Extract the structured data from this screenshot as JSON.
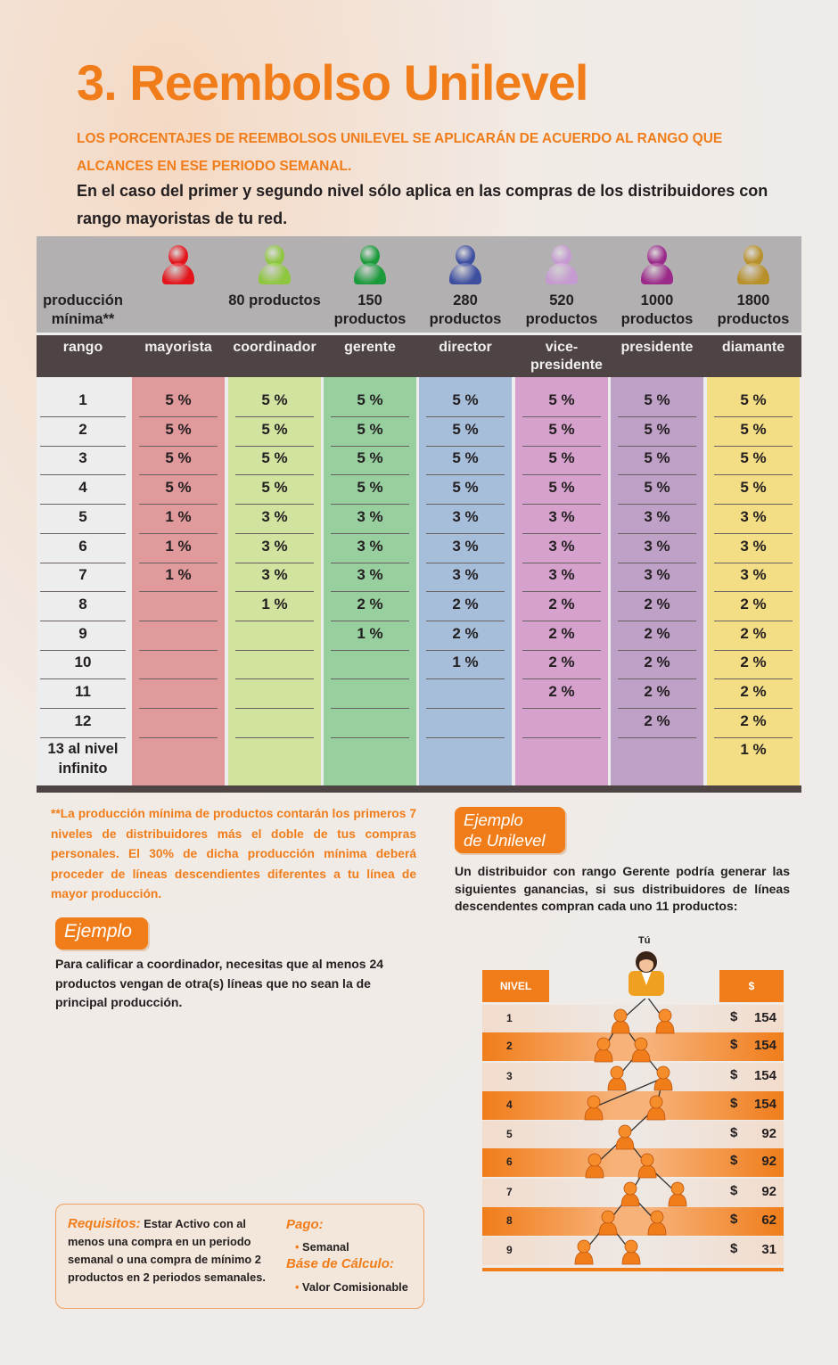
{
  "title": "3. Reembolso Unilevel",
  "intro_orange": "LOS PORCENTAJES DE REEMBOLSOS UNILEVEL SE APLICARÁN DE ACUERDO AL RANGO QUE ALCANCES EN ESE PERIODO SEMANAL.",
  "intro_dark": "En el caso del primer y segundo nivel sólo aplica en las compras de los distribuidores con rango mayoristas de tu red.",
  "table": {
    "header_label": "producción mínima**",
    "rank_label": "rango",
    "ranks": [
      {
        "name": "mayorista",
        "min": "",
        "icon": "person-red-icon",
        "icon_color": "#e3141b",
        "col_color": "#e09a9c"
      },
      {
        "name": "coordinador",
        "min": "80 productos",
        "icon": "person-lightgreen-icon",
        "icon_color": "#8ec63f",
        "col_color": "#d2e3a0"
      },
      {
        "name": "gerente",
        "min": "150 productos",
        "icon": "person-green-icon",
        "icon_color": "#1a9a3a",
        "col_color": "#97cf9f"
      },
      {
        "name": "director",
        "min": "280 productos",
        "icon": "person-blue-icon",
        "icon_color": "#3f4fa0",
        "col_color": "#a7bedb"
      },
      {
        "name": "vice-presidente",
        "min": "520 productos",
        "icon": "person-lilac-icon",
        "icon_color": "#c59ad0",
        "col_color": "#d6a2cd"
      },
      {
        "name": "presidente",
        "min": "1000 productos",
        "icon": "person-purple-icon",
        "icon_color": "#9b2a8a",
        "col_color": "#bfa1c8"
      },
      {
        "name": "diamante",
        "min": "1800 productos",
        "icon": "person-gold-icon",
        "icon_color": "#b8902a",
        "col_color": "#f4de85"
      }
    ],
    "levels": [
      "1",
      "2",
      "3",
      "4",
      "5",
      "6",
      "7",
      "8",
      "9",
      "10",
      "11",
      "12",
      "13 al nivel infinito"
    ],
    "values": [
      [
        "5 %",
        "5 %",
        "5 %",
        "5 %",
        "5 %",
        "5 %",
        "5 %"
      ],
      [
        "5 %",
        "5 %",
        "5 %",
        "5 %",
        "5 %",
        "5 %",
        "5 %"
      ],
      [
        "5 %",
        "5 %",
        "5 %",
        "5 %",
        "5 %",
        "5 %",
        "5 %"
      ],
      [
        "5 %",
        "5 %",
        "5 %",
        "5 %",
        "5 %",
        "5 %",
        "5 %"
      ],
      [
        "1 %",
        "3 %",
        "3 %",
        "3 %",
        "3 %",
        "3 %",
        "3 %"
      ],
      [
        "1 %",
        "3 %",
        "3 %",
        "3 %",
        "3 %",
        "3 %",
        "3 %"
      ],
      [
        "1 %",
        "3 %",
        "3 %",
        "3 %",
        "3 %",
        "3 %",
        "3 %"
      ],
      [
        "",
        "1 %",
        "2 %",
        "2 %",
        "2 %",
        "2 %",
        "2 %"
      ],
      [
        "",
        "",
        "1 %",
        "2 %",
        "2 %",
        "2 %",
        "2 %"
      ],
      [
        "",
        "",
        "",
        "1 %",
        "2 %",
        "2 %",
        "2 %"
      ],
      [
        "",
        "",
        "",
        "",
        "2 %",
        "2 %",
        "2 %"
      ],
      [
        "",
        "",
        "",
        "",
        "",
        "2 %",
        "2 %"
      ],
      [
        "",
        "",
        "",
        "",
        "",
        "",
        "1 %"
      ]
    ]
  },
  "note": "**La producción mínima de productos contarán los primeros 7 niveles de distribuidores más el doble de tus compras personales. El 30% de dicha producción mínima deberá proceder de líneas descendientes diferentes a tu línea de mayor producción.",
  "ejemplo": {
    "tag": "Ejemplo",
    "text": "Para calificar a coordinador, necesitas que al menos 24 productos vengan de otra(s) líneas que no sean la de principal producción."
  },
  "ejemplo_unilevel": {
    "tag_line1": "Ejemplo",
    "tag_line2": "de Unilevel",
    "text": "Un distribuidor con rango Gerente podría generar las siguientes ganancias, si sus distribuidores de líneas descendentes compran cada uno 11 productos:",
    "you_label": "Tú",
    "col_nivel": "NIVEL",
    "col_dollar": "$",
    "rows": [
      {
        "n": "1",
        "d": "$",
        "v": "154"
      },
      {
        "n": "2",
        "d": "$",
        "v": "154"
      },
      {
        "n": "3",
        "d": "$",
        "v": "154"
      },
      {
        "n": "4",
        "d": "$",
        "v": "154"
      },
      {
        "n": "5",
        "d": "$",
        "v": "92"
      },
      {
        "n": "6",
        "d": "$",
        "v": "92"
      },
      {
        "n": "7",
        "d": "$",
        "v": "92"
      },
      {
        "n": "8",
        "d": "$",
        "v": "62"
      },
      {
        "n": "9",
        "d": "$",
        "v": "31"
      }
    ]
  },
  "requisitos": {
    "label": "Requisitos:",
    "text": "Estar Activo con al menos una compra en un periodo semanal o una compra de mínimo 2 productos en 2 periodos semanales.",
    "pago_label": "Pago:",
    "pago_item": "Semanal",
    "base_label": "Báse de Cálculo:",
    "base_item": "Valor Comisionable",
    "bullet": "•"
  },
  "colors": {
    "accent": "#f07d1a",
    "dark_bar": "#4d4443",
    "header_gray": "#b2b0b0"
  }
}
